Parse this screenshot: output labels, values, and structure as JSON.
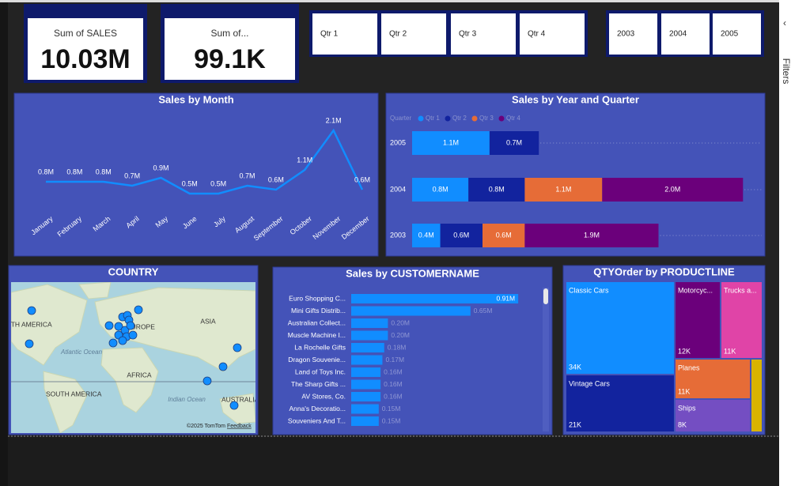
{
  "kpis": [
    {
      "label": "Sum of SALES",
      "value": "10.03M"
    },
    {
      "label": "Sum of...",
      "value": "99.1K"
    }
  ],
  "slicers": {
    "quarters": [
      "Qtr 1",
      "Qtr 2",
      "Qtr 3",
      "Qtr 4"
    ],
    "years": [
      "2003",
      "2004",
      "2005"
    ]
  },
  "filters_pane": {
    "label": "Filters"
  },
  "chart_data": [
    {
      "type": "line",
      "title": "Sales by Month",
      "categories": [
        "January",
        "February",
        "March",
        "April",
        "May",
        "June",
        "July",
        "August",
        "September",
        "October",
        "November",
        "December"
      ],
      "values": [
        0.8,
        0.8,
        0.8,
        0.7,
        0.9,
        0.5,
        0.5,
        0.7,
        0.6,
        1.1,
        2.1,
        0.6
      ],
      "value_labels": [
        "0.8M",
        "0.8M",
        "0.8M",
        "0.7M",
        "0.9M",
        "0.5M",
        "0.5M",
        "0.7M",
        "0.6M",
        "1.1M",
        "2.1M",
        "0.6M"
      ],
      "color": "#118DFF"
    },
    {
      "type": "bar",
      "orientation": "horizontal",
      "stacked": true,
      "title": "Sales by Year and Quarter",
      "legend_title": "Quarter",
      "categories": [
        "2005",
        "2004",
        "2003"
      ],
      "series": [
        {
          "name": "Qtr 1",
          "color": "#118DFF",
          "values": [
            1.1,
            0.8,
            0.4
          ],
          "value_labels": [
            "1.1M",
            "0.8M",
            "0.4M"
          ]
        },
        {
          "name": "Qtr 2",
          "color": "#12239E",
          "values": [
            0.7,
            0.8,
            0.6
          ],
          "value_labels": [
            "0.7M",
            "0.8M",
            "0.6M"
          ]
        },
        {
          "name": "Qtr 3",
          "color": "#E66C37",
          "values": [
            null,
            1.1,
            0.6
          ],
          "value_labels": [
            null,
            "1.1M",
            "0.6M"
          ]
        },
        {
          "name": "Qtr 4",
          "color": "#6B007B",
          "values": [
            null,
            2.0,
            1.9
          ],
          "value_labels": [
            null,
            "2.0M",
            "1.9M"
          ]
        }
      ]
    },
    {
      "type": "map",
      "title": "COUNTRY",
      "labels": [
        "NORTH AMERICA",
        "EUROPE",
        "ASIA",
        "Atlantic Ocean",
        "AFRICA",
        "Indian Ocean",
        "SOUTH AMERICA",
        "AUSTRALIA"
      ],
      "attribution": "©2025 TomTom",
      "feedback": "Feedback"
    },
    {
      "type": "bar",
      "orientation": "horizontal",
      "title": "Sales by CUSTOMERNAME",
      "categories": [
        "Euro Shopping C...",
        "Mini Gifts Distrib...",
        "Australian Collect...",
        "Muscle Machine I...",
        "La Rochelle Gifts",
        "Dragon Souvenie...",
        "Land of Toys Inc.",
        "The Sharp Gifts ...",
        "AV Stores, Co.",
        "Anna's Decoratio...",
        "Souveniers And T..."
      ],
      "values": [
        0.91,
        0.65,
        0.2,
        0.2,
        0.18,
        0.17,
        0.16,
        0.16,
        0.16,
        0.15,
        0.15
      ],
      "value_labels": [
        "0.91M",
        "0.65M",
        "0.20M",
        "0.20M",
        "0.18M",
        "0.17M",
        "0.16M",
        "0.16M",
        "0.16M",
        "0.15M",
        "0.15M"
      ],
      "color": "#118DFF"
    },
    {
      "type": "treemap",
      "title": "QTYOrder by PRODUCTLINE",
      "categories": [
        "Classic Cars",
        "Vintage Cars",
        "Motorcyc...",
        "Trucks a...",
        "Planes",
        "Ships",
        null
      ],
      "values": [
        34,
        21,
        12,
        11,
        11,
        8,
        3
      ],
      "value_labels": [
        "34K",
        "21K",
        "12K",
        "11K",
        "11K",
        "8K",
        null
      ],
      "colors": [
        "#118DFF",
        "#12239E",
        "#6B007B",
        "#E044A7",
        "#E66C37",
        "#744EC2",
        "#D9B300"
      ]
    }
  ]
}
